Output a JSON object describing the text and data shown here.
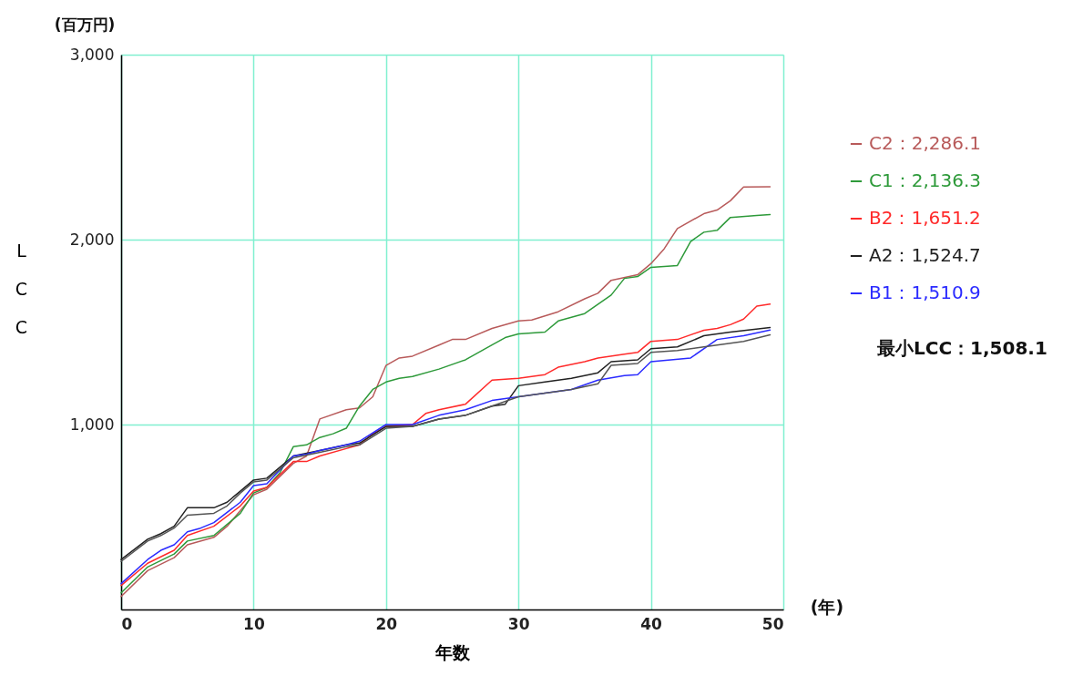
{
  "chart_data": {
    "type": "line",
    "xlabel": "年数",
    "ylabel": "LCC",
    "annotations": [
      "(百万円)",
      "(年)",
      "最小LCC：1,508.1"
    ],
    "xlim": [
      0,
      50
    ],
    "xticks": [
      0,
      10,
      20,
      30,
      40,
      50
    ],
    "ylim": [
      0,
      3000
    ],
    "yticks": [
      {
        "value": 1000,
        "label": "1,000"
      },
      {
        "value": 2000,
        "label": "2,000"
      },
      {
        "value": 3000,
        "label": "3,000"
      }
    ],
    "grid": true,
    "legend": "right",
    "line_style": "solid",
    "marker": "none",
    "series": [
      {
        "name": "C2：2,286.1",
        "color": "#b85a5a",
        "x": [
          0,
          2,
          4,
          5,
          7,
          8,
          10,
          11,
          13,
          14,
          15,
          17,
          18,
          19,
          20,
          21,
          22,
          24,
          25,
          26,
          28,
          30,
          31,
          33,
          35,
          36,
          37,
          39,
          40,
          41,
          42,
          44,
          45,
          46,
          47,
          49
        ],
        "values": [
          70,
          210,
          280,
          350,
          390,
          450,
          620,
          650,
          790,
          830,
          1030,
          1080,
          1090,
          1150,
          1320,
          1360,
          1370,
          1430,
          1460,
          1460,
          1520,
          1560,
          1565,
          1610,
          1680,
          1710,
          1780,
          1810,
          1870,
          1950,
          2060,
          2140,
          2160,
          2210,
          2285,
          2286
        ]
      },
      {
        "name": "C1：2,136.3",
        "color": "#2e9a3a",
        "x": [
          0,
          2,
          4,
          5,
          7,
          9,
          10,
          11,
          12,
          13,
          14,
          15,
          16,
          17,
          18,
          19,
          20,
          21,
          22,
          24,
          26,
          28,
          29,
          30,
          32,
          33,
          35,
          37,
          38,
          39,
          40,
          42,
          43,
          44,
          45,
          46,
          48,
          49
        ],
        "values": [
          90,
          230,
          300,
          370,
          400,
          520,
          630,
          660,
          740,
          880,
          890,
          930,
          950,
          980,
          1100,
          1190,
          1230,
          1250,
          1260,
          1300,
          1350,
          1430,
          1470,
          1490,
          1500,
          1560,
          1600,
          1700,
          1790,
          1800,
          1850,
          1860,
          1990,
          2040,
          2050,
          2120,
          2130,
          2136
        ]
      },
      {
        "name": "B2：1,651.2",
        "color": "#ff2a2a",
        "x": [
          0,
          2,
          4,
          5,
          7,
          9,
          10,
          11,
          13,
          14,
          15,
          17,
          18,
          19,
          20,
          22,
          23,
          24,
          26,
          28,
          30,
          32,
          33,
          35,
          36,
          38,
          39,
          40,
          42,
          44,
          45,
          46,
          47,
          48,
          49
        ],
        "values": [
          130,
          250,
          320,
          400,
          450,
          560,
          640,
          660,
          800,
          800,
          830,
          870,
          890,
          950,
          990,
          1000,
          1060,
          1080,
          1110,
          1240,
          1250,
          1270,
          1310,
          1340,
          1360,
          1380,
          1390,
          1450,
          1460,
          1510,
          1520,
          1540,
          1570,
          1640,
          1651
        ]
      },
      {
        "name": "A2：1,524.7",
        "color": "#222222",
        "x": [
          0,
          2,
          3,
          4,
          5,
          7,
          8,
          9,
          10,
          11,
          13,
          15,
          17,
          18,
          20,
          22,
          24,
          26,
          28,
          29,
          30,
          32,
          34,
          36,
          37,
          39,
          40,
          42,
          44,
          46,
          49
        ],
        "values": [
          270,
          380,
          410,
          450,
          550,
          550,
          580,
          640,
          700,
          710,
          830,
          860,
          890,
          900,
          990,
          990,
          1030,
          1050,
          1100,
          1110,
          1210,
          1230,
          1250,
          1280,
          1340,
          1350,
          1410,
          1420,
          1480,
          1500,
          1525
        ]
      },
      {
        "name": "B1：1,510.9",
        "color": "#2a2aff",
        "x": [
          0,
          2,
          3,
          4,
          5,
          6,
          7,
          9,
          10,
          11,
          13,
          14,
          15,
          17,
          18,
          20,
          22,
          24,
          26,
          28,
          30,
          32,
          34,
          36,
          38,
          39,
          40,
          43,
          45,
          47,
          49
        ],
        "values": [
          140,
          270,
          320,
          350,
          420,
          440,
          470,
          580,
          670,
          680,
          830,
          840,
          860,
          890,
          910,
          1000,
          1000,
          1050,
          1080,
          1130,
          1150,
          1170,
          1190,
          1240,
          1265,
          1270,
          1340,
          1360,
          1460,
          1480,
          1511
        ]
      },
      {
        "color": "#555555",
        "x": [
          0,
          2,
          3,
          4,
          5,
          7,
          8,
          9,
          10,
          11,
          13,
          15,
          17,
          18,
          20,
          22,
          24,
          26,
          28,
          30,
          32,
          34,
          36,
          37,
          39,
          40,
          42,
          44,
          46,
          47,
          49
        ],
        "values": [
          260,
          370,
          400,
          440,
          510,
          520,
          560,
          630,
          690,
          700,
          820,
          850,
          880,
          890,
          980,
          990,
          1030,
          1050,
          1100,
          1150,
          1170,
          1190,
          1220,
          1320,
          1330,
          1390,
          1400,
          1420,
          1440,
          1450,
          1485
        ]
      }
    ]
  }
}
